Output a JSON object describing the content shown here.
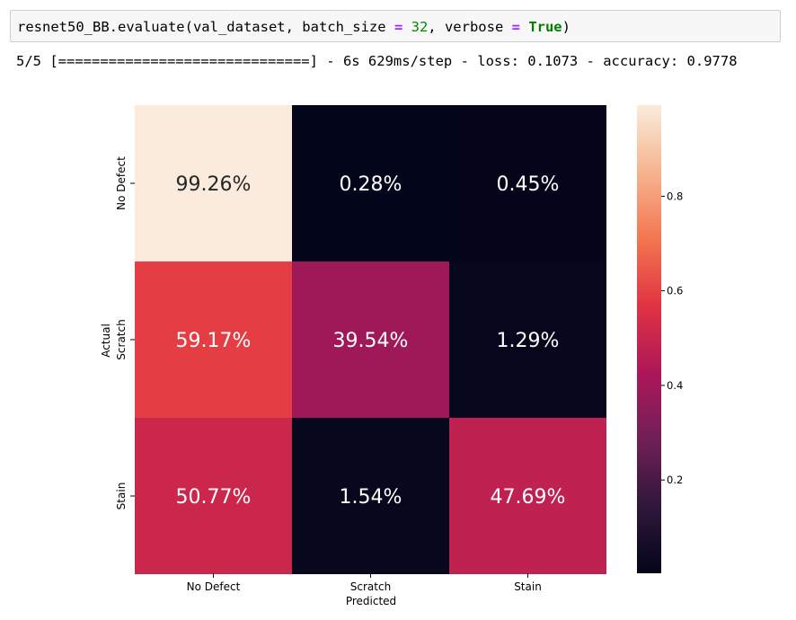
{
  "code_cell": {
    "prefix": "resnet50_BB.evaluate(val_dataset, batch_size ",
    "op1": "=",
    "middle": " ",
    "num": "32",
    "mid2": ", verbose ",
    "op2": "=",
    "space": " ",
    "kw": "True",
    "suffix": ")"
  },
  "output": {
    "progress_line": "5/5 [==============================] - 6s 629ms/step - loss: 0.1073 - accuracy: 0.9778"
  },
  "chart_data": {
    "type": "heatmap",
    "xlabel": "Predicted",
    "ylabel": "Actual",
    "x_categories": [
      "No Defect",
      "Scratch",
      "Stain"
    ],
    "y_categories": [
      "No Defect",
      "Scratch",
      "Stain"
    ],
    "values": [
      [
        0.9926,
        0.0028,
        0.0045
      ],
      [
        0.5917,
        0.3954,
        0.0129
      ],
      [
        0.5077,
        0.0154,
        0.4769
      ]
    ],
    "cell_labels": [
      [
        "99.26%",
        "0.28%",
        "0.45%"
      ],
      [
        "59.17%",
        "39.54%",
        "1.29%"
      ],
      [
        "50.77%",
        "1.54%",
        "47.69%"
      ]
    ],
    "colorbar": {
      "vmin": 0.0028,
      "vmax": 0.9926,
      "ticks": [
        0.2,
        0.4,
        0.6,
        0.8
      ],
      "tick_labels": [
        "0.2",
        "0.4",
        "0.6",
        "0.8"
      ]
    },
    "colormap": "rocket",
    "colormap_stops": [
      "#03051a",
      "#30173a",
      "#701f57",
      "#ad1759",
      "#e13342",
      "#f37651",
      "#f6b48f",
      "#faebdd"
    ]
  }
}
